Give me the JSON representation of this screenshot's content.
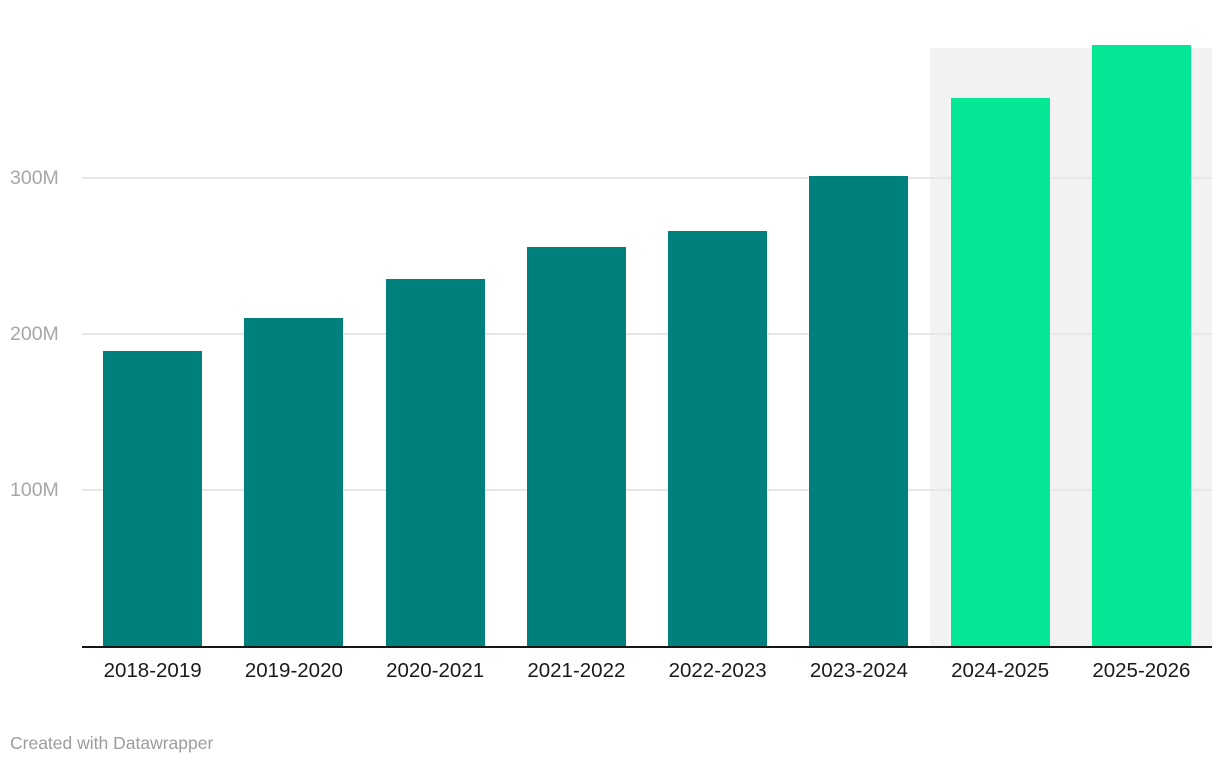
{
  "chart_data": {
    "type": "bar",
    "title": "",
    "xlabel": "",
    "ylabel": "",
    "categories": [
      "2018-2019",
      "2019-2020",
      "2020-2021",
      "2021-2022",
      "2022-2023",
      "2023-2024",
      "2024-2025",
      "2025-2026"
    ],
    "values": [
      189,
      210,
      235,
      256,
      266,
      301,
      351,
      385
    ],
    "value_unit": "M",
    "ylim": [
      0,
      400
    ],
    "yticks": [
      {
        "value": 100,
        "label": "100M"
      },
      {
        "value": 200,
        "label": "200M"
      },
      {
        "value": 300,
        "label": "300M"
      }
    ],
    "grid": true,
    "legend": "none",
    "bar_color": "#00807d",
    "forecast_color": "#04e795",
    "forecast_start_index": 6,
    "forecast_background": "#f2f2f2"
  },
  "footer": {
    "credit": "Created with Datawrapper"
  }
}
